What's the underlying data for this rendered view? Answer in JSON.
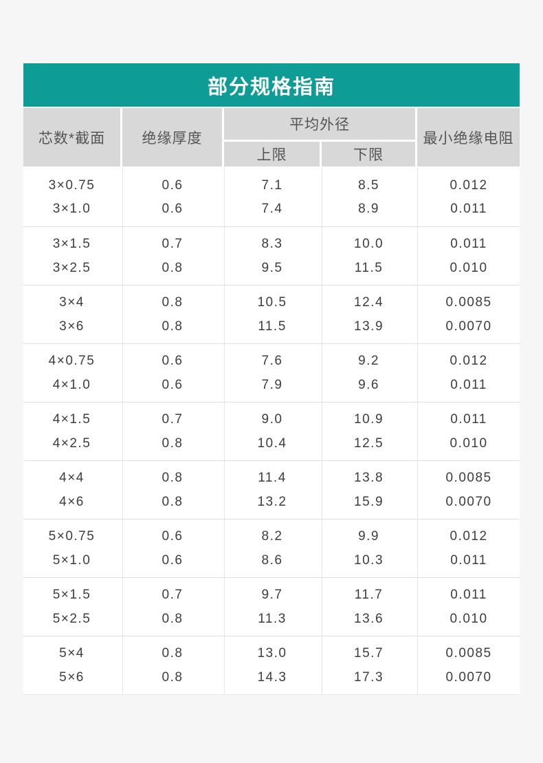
{
  "title": "部分规格指南",
  "colors": {
    "accent": "#0E9C96",
    "header_bg": "#D8D8D8",
    "page_bg": "#F6F6F6",
    "body_text": "#3D3D3D",
    "header_text": "#555555"
  },
  "columns": {
    "spec": "芯数*截面",
    "thickness": "绝缘厚度",
    "avg_od": "平均外径",
    "od_upper": "上限",
    "od_lower": "下限",
    "min_resistance": "最小绝缘电阻"
  },
  "groups": [
    {
      "rows": [
        {
          "spec": "3×0.75",
          "thickness": "0.6",
          "od_upper": "7.1",
          "od_lower": "8.5",
          "min_resistance": "0.012"
        },
        {
          "spec": "3×1.0",
          "thickness": "0.6",
          "od_upper": "7.4",
          "od_lower": "8.9",
          "min_resistance": "0.011"
        }
      ]
    },
    {
      "rows": [
        {
          "spec": "3×1.5",
          "thickness": "0.7",
          "od_upper": "8.3",
          "od_lower": "10.0",
          "min_resistance": "0.011"
        },
        {
          "spec": "3×2.5",
          "thickness": "0.8",
          "od_upper": "9.5",
          "od_lower": "11.5",
          "min_resistance": "0.010"
        }
      ]
    },
    {
      "rows": [
        {
          "spec": "3×4",
          "thickness": "0.8",
          "od_upper": "10.5",
          "od_lower": "12.4",
          "min_resistance": "0.0085"
        },
        {
          "spec": "3×6",
          "thickness": "0.8",
          "od_upper": "11.5",
          "od_lower": "13.9",
          "min_resistance": "0.0070"
        }
      ]
    },
    {
      "rows": [
        {
          "spec": "4×0.75",
          "thickness": "0.6",
          "od_upper": "7.6",
          "od_lower": "9.2",
          "min_resistance": "0.012"
        },
        {
          "spec": "4×1.0",
          "thickness": "0.6",
          "od_upper": "7.9",
          "od_lower": "9.6",
          "min_resistance": "0.011"
        }
      ]
    },
    {
      "rows": [
        {
          "spec": "4×1.5",
          "thickness": "0.7",
          "od_upper": "9.0",
          "od_lower": "10.9",
          "min_resistance": "0.011"
        },
        {
          "spec": "4×2.5",
          "thickness": "0.8",
          "od_upper": "10.4",
          "od_lower": "12.5",
          "min_resistance": "0.010"
        }
      ]
    },
    {
      "rows": [
        {
          "spec": "4×4",
          "thickness": "0.8",
          "od_upper": "11.4",
          "od_lower": "13.8",
          "min_resistance": "0.0085"
        },
        {
          "spec": "4×6",
          "thickness": "0.8",
          "od_upper": "13.2",
          "od_lower": "15.9",
          "min_resistance": "0.0070"
        }
      ]
    },
    {
      "rows": [
        {
          "spec": "5×0.75",
          "thickness": "0.6",
          "od_upper": "8.2",
          "od_lower": "9.9",
          "min_resistance": "0.012"
        },
        {
          "spec": "5×1.0",
          "thickness": "0.6",
          "od_upper": "8.6",
          "od_lower": "10.3",
          "min_resistance": "0.011"
        }
      ]
    },
    {
      "rows": [
        {
          "spec": "5×1.5",
          "thickness": "0.7",
          "od_upper": "9.7",
          "od_lower": "11.7",
          "min_resistance": "0.011"
        },
        {
          "spec": "5×2.5",
          "thickness": "0.8",
          "od_upper": "11.3",
          "od_lower": "13.6",
          "min_resistance": "0.010"
        }
      ]
    },
    {
      "rows": [
        {
          "spec": "5×4",
          "thickness": "0.8",
          "od_upper": "13.0",
          "od_lower": "15.7",
          "min_resistance": "0.0085"
        },
        {
          "spec": "5×6",
          "thickness": "0.8",
          "od_upper": "14.3",
          "od_lower": "17.3",
          "min_resistance": "0.0070"
        }
      ]
    }
  ]
}
